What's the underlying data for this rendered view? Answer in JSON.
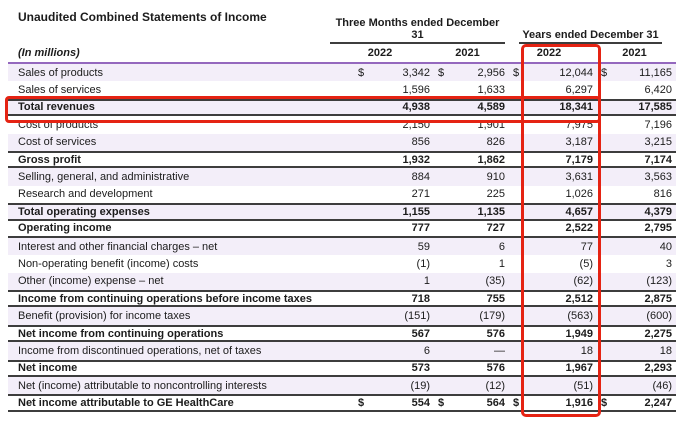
{
  "title": "Unaudited Combined Statements of Income",
  "colors": {
    "accent_purple": "#9468BE",
    "row_shade": "#F3EEF9",
    "rule_dark": "#3D3D3D",
    "highlight_red": "#E52313"
  },
  "table": {
    "units_label": "(In millions)",
    "currency_symbol": "$",
    "col_groups": [
      {
        "label": "Three Months ended December 31"
      },
      {
        "label": "Years ended December 31"
      }
    ],
    "year_headers": [
      "2022",
      "2021",
      "2022",
      "2021"
    ],
    "rows": [
      {
        "label": "Sales of products",
        "values": [
          "3,342",
          "2,956",
          "12,044",
          "11,165"
        ],
        "dollar": true,
        "bold": false,
        "shaded": true,
        "bt": false,
        "bb": false
      },
      {
        "label": "Sales of services",
        "values": [
          "1,596",
          "1,633",
          "6,297",
          "6,420"
        ],
        "dollar": false,
        "bold": false,
        "shaded": false,
        "bt": false,
        "bb": false
      },
      {
        "label": "Total revenues",
        "values": [
          "4,938",
          "4,589",
          "18,341",
          "17,585"
        ],
        "dollar": false,
        "bold": true,
        "shaded": true,
        "bt": true,
        "bb": true
      },
      {
        "label": "Cost of products",
        "values": [
          "2,150",
          "1,901",
          "7,975",
          "7,196"
        ],
        "dollar": false,
        "bold": false,
        "shaded": false,
        "bt": false,
        "bb": false
      },
      {
        "label": "Cost of services",
        "values": [
          "856",
          "826",
          "3,187",
          "3,215"
        ],
        "dollar": false,
        "bold": false,
        "shaded": true,
        "bt": false,
        "bb": false
      },
      {
        "label": "Gross profit",
        "values": [
          "1,932",
          "1,862",
          "7,179",
          "7,174"
        ],
        "dollar": false,
        "bold": true,
        "shaded": false,
        "bt": true,
        "bb": true
      },
      {
        "label": "Selling, general, and administrative",
        "values": [
          "884",
          "910",
          "3,631",
          "3,563"
        ],
        "dollar": false,
        "bold": false,
        "shaded": true,
        "bt": false,
        "bb": false
      },
      {
        "label": "Research and development",
        "values": [
          "271",
          "225",
          "1,026",
          "816"
        ],
        "dollar": false,
        "bold": false,
        "shaded": false,
        "bt": false,
        "bb": false
      },
      {
        "label": "Total operating expenses",
        "values": [
          "1,155",
          "1,135",
          "4,657",
          "4,379"
        ],
        "dollar": false,
        "bold": true,
        "shaded": true,
        "bt": true,
        "bb": true
      },
      {
        "label": "Operating income",
        "values": [
          "777",
          "727",
          "2,522",
          "2,795"
        ],
        "dollar": false,
        "bold": true,
        "shaded": false,
        "bt": false,
        "bb": true
      },
      {
        "label": "Interest and other financial charges – net",
        "values": [
          "59",
          "6",
          "77",
          "40"
        ],
        "dollar": false,
        "bold": false,
        "shaded": true,
        "bt": false,
        "bb": false
      },
      {
        "label": "Non-operating benefit (income) costs",
        "values": [
          "(1)",
          "1",
          "(5)",
          "3"
        ],
        "dollar": false,
        "bold": false,
        "shaded": false,
        "bt": false,
        "bb": false
      },
      {
        "label": "Other (income) expense – net",
        "values": [
          "1",
          "(35)",
          "(62)",
          "(123)"
        ],
        "dollar": false,
        "bold": false,
        "shaded": true,
        "bt": false,
        "bb": false
      },
      {
        "label": "Income from continuing operations before income taxes",
        "values": [
          "718",
          "755",
          "2,512",
          "2,875"
        ],
        "dollar": false,
        "bold": true,
        "shaded": false,
        "bt": true,
        "bb": true
      },
      {
        "label": "Benefit (provision) for income taxes",
        "values": [
          "(151)",
          "(179)",
          "(563)",
          "(600)"
        ],
        "dollar": false,
        "bold": false,
        "shaded": true,
        "bt": false,
        "bb": false
      },
      {
        "label": "Net income from continuing operations",
        "values": [
          "567",
          "576",
          "1,949",
          "2,275"
        ],
        "dollar": false,
        "bold": true,
        "shaded": false,
        "bt": true,
        "bb": true
      },
      {
        "label": "Income from discontinued operations, net of taxes",
        "values": [
          "6",
          "—",
          "18",
          "18"
        ],
        "dollar": false,
        "bold": false,
        "shaded": true,
        "bt": false,
        "bb": false
      },
      {
        "label": "Net income",
        "values": [
          "573",
          "576",
          "1,967",
          "2,293"
        ],
        "dollar": false,
        "bold": true,
        "shaded": false,
        "bt": true,
        "bb": true
      },
      {
        "label": "Net (income) attributable to noncontrolling interests",
        "values": [
          "(19)",
          "(12)",
          "(51)",
          "(46)"
        ],
        "dollar": false,
        "bold": false,
        "shaded": true,
        "bt": false,
        "bb": false
      },
      {
        "label": "Net income attributable to GE HealthCare",
        "values": [
          "554",
          "564",
          "1,916",
          "2,247"
        ],
        "dollar": true,
        "bold": true,
        "shaded": false,
        "bt": true,
        "bb": true
      }
    ]
  },
  "annotations": {
    "column_highlight": "Years ended December 31 — 2022 column",
    "row_highlight": "Total revenues row"
  }
}
